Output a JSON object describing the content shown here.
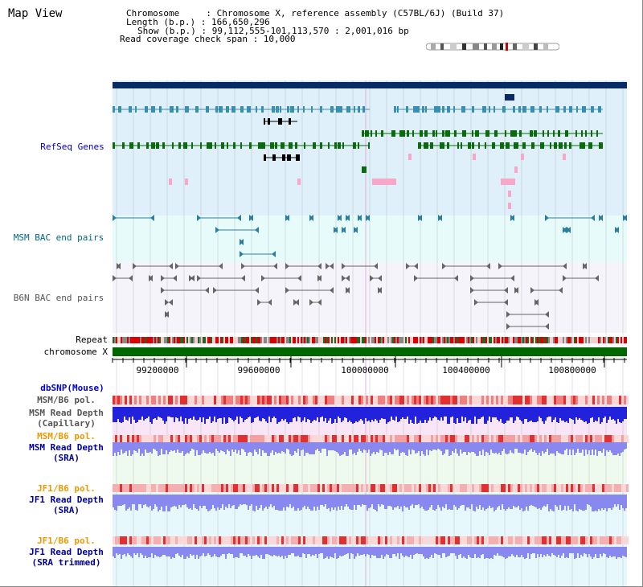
{
  "header": {
    "title": "Map View",
    "info_lines": [
      "Chromosome     : Chromosome X, reference assembly (C57BL/6J) (Build 37)",
      "Length (b.p.) : 166,650,296",
      "Show (b.p.) : 99,112,555-101,113,570 : 2,001,016 bp",
      "Read coverage check span : 10,000"
    ]
  },
  "tracks": {
    "refseq": {
      "label": "RefSeq Genes",
      "color": "#0000cc"
    },
    "msm_bac": {
      "label": "MSM BAC end pairs",
      "color": "#006688"
    },
    "b6n_bac": {
      "label": "B6N BAC end pairs",
      "color": "#555555"
    },
    "repeat": {
      "label": "Repeat"
    },
    "chromosome": {
      "label": "chromosome X",
      "bar_color": "#006600"
    },
    "dbsnp": {
      "label": "dbSNP(Mouse)",
      "color": "#0000cc"
    },
    "msm_b6_pol_1": {
      "label": "MSM/B6 pol.",
      "color": "#555555"
    },
    "msm_read_cap": {
      "label_1": "MSM Read Depth",
      "label_2": "(Capillary)",
      "color": "#555555"
    },
    "msm_b6_pol_2": {
      "label": "MSM/B6 pol.",
      "color": "#ee9900"
    },
    "msm_read_sra": {
      "label_1": "MSM Read Depth",
      "label_2": "(SRA)",
      "color": "#000099"
    },
    "jf1_b6_pol_1": {
      "label": "JF1/B6 pol.",
      "color": "#ee9900"
    },
    "jf1_read_sra": {
      "label_1": "JF1 Read Depth",
      "label_2": "(SRA)",
      "color": "#000099"
    },
    "jf1_b6_pol_2": {
      "label": "JF1/B6 pol.",
      "color": "#ee9900"
    },
    "jf1_read_trim": {
      "label_1": "JF1 Read Depth",
      "label_2": "(SRA trimmed)",
      "color": "#000099"
    }
  },
  "axis": {
    "ticks": [
      "99200000",
      "99600000",
      "100000000",
      "100400000",
      "100800000"
    ]
  },
  "colors": {
    "refseq_bg": "#dff0fa",
    "msm_bac_bg": "#e8fbfb",
    "gene_navy": "#0a2a66",
    "gene_teal": "#3a8fb0",
    "gene_green": "#0a6b0a",
    "pink": "#f7a8c8",
    "read_blue": "#2222dd",
    "read_light_blue": "#8888ee",
    "snp_pink": "#f4a0a0"
  }
}
